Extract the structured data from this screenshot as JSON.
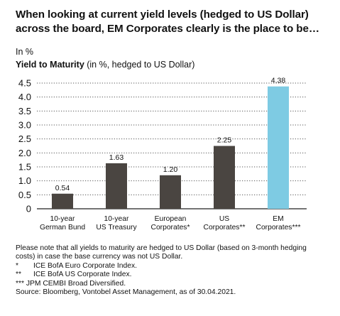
{
  "header": {
    "title": "When looking at current yield levels (hedged to US Dollar) across the board, EM Corporates clearly is the place to be…",
    "unit": "In %",
    "subtitle_bold": "Yield to Maturity",
    "subtitle_rest": " (in %, hedged to US Dollar)"
  },
  "chart_data": {
    "type": "bar",
    "categories": [
      [
        "10-year",
        "German Bund"
      ],
      [
        "10-year",
        "US Treasury"
      ],
      [
        "European",
        "Corporates*"
      ],
      [
        "US",
        "Corporates**"
      ],
      [
        "EM",
        "Corporates***"
      ]
    ],
    "values": [
      0.54,
      1.63,
      1.2,
      2.25,
      4.38
    ],
    "value_labels": [
      "0.54",
      "1.63",
      "1.20",
      "2.25",
      "4.38"
    ],
    "bar_colors": [
      "#4a4541",
      "#4a4541",
      "#4a4541",
      "#4a4541",
      "#7ecbe3"
    ],
    "ylim": [
      0,
      4.5
    ],
    "yticks": [
      "0",
      "0.5",
      "1.0",
      "1.5",
      "2.0",
      "2.5",
      "3.0",
      "3.5",
      "4.0",
      "4.5"
    ],
    "grid": "dotted horizontal"
  },
  "notes": {
    "main": "Please note that all yields to maturity are hedged to US Dollar (based on 3-month hedging costs) in case the base currency was not US Dollar.",
    "footnotes": [
      {
        "mark": "*",
        "text": "ICE BofA Euro Corporate Index."
      },
      {
        "mark": "**",
        "text": "ICE BofA US Corporate Index."
      },
      {
        "mark": "***",
        "text": "JPM CEMBI Broad Diversified."
      }
    ],
    "source": "Source: Bloomberg, Vontobel Asset Management, as of 30.04.2021."
  }
}
